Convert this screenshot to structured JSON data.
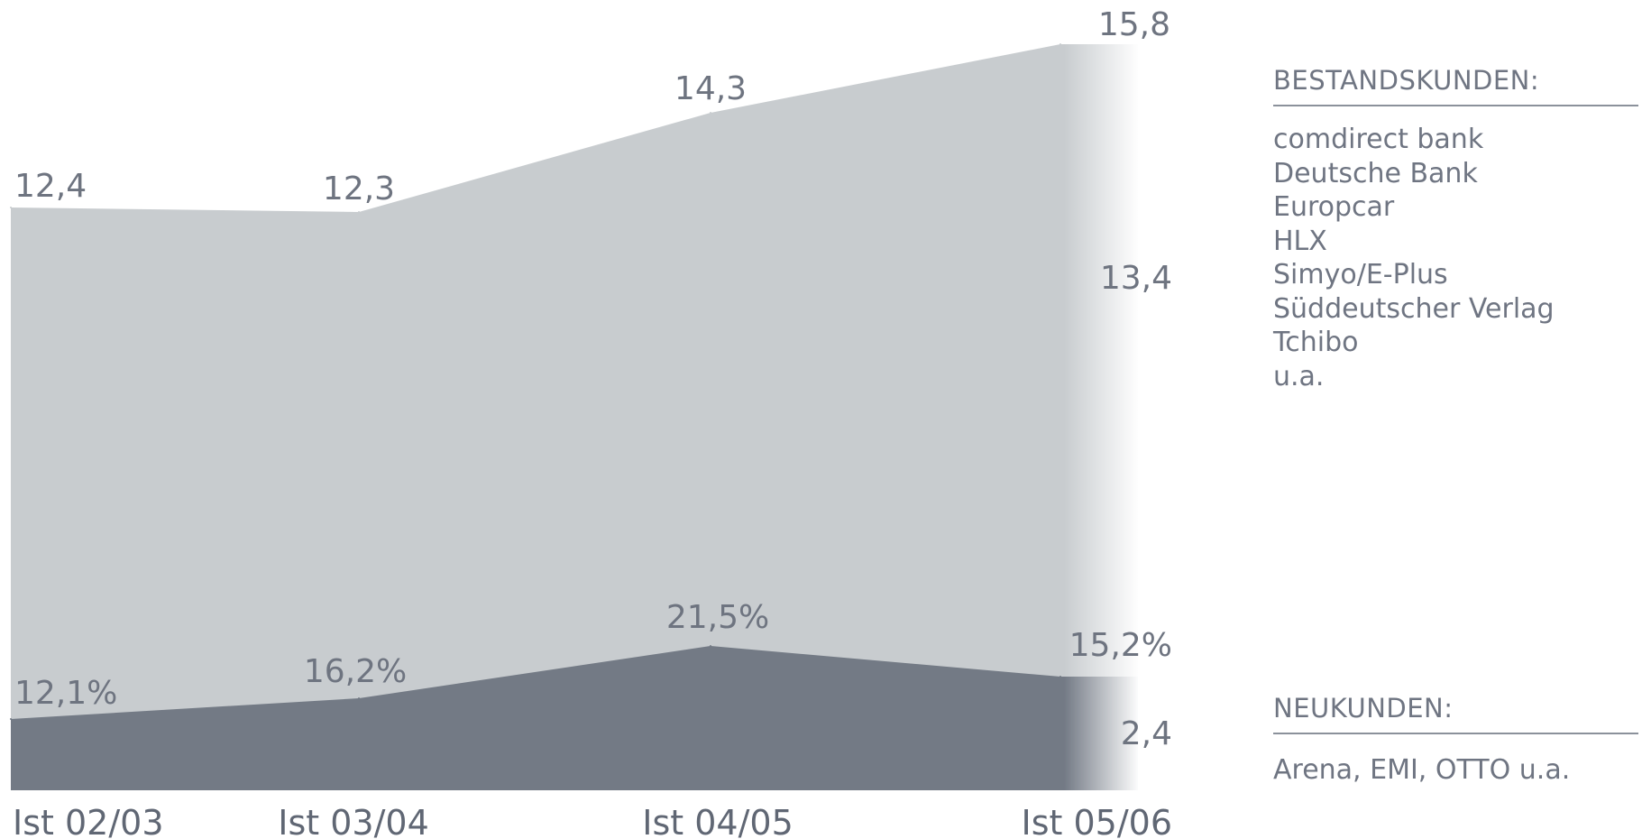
{
  "chart_data": {
    "type": "area",
    "categories": [
      "Ist 02/03",
      "Ist 03/04",
      "Ist 04/05",
      "Ist 05/06"
    ],
    "series": [
      {
        "values": [
          12.4,
          12.3,
          14.3,
          15.8
        ],
        "labels": [
          "12,4",
          "12,3",
          "14,3",
          "15,8"
        ],
        "color": "#c8cccf"
      },
      {
        "values": [
          12.1,
          16.2,
          21.5,
          15.2
        ],
        "labels": [
          "12,1%",
          "16,2%",
          "21,5%",
          "15,2%"
        ],
        "color": "#737a85"
      }
    ],
    "segment_labels": {
      "bestandskunden": "13,4",
      "neukunden": "2,4"
    },
    "ylim": [
      0,
      16
    ]
  },
  "legend": {
    "bestandskunden": {
      "heading": "BESTANDSKUNDEN:",
      "items": [
        "comdirect bank",
        "Deutsche Bank",
        "Europcar",
        "HLX",
        "Simyo/E-Plus",
        "Süddeutscher Verlag",
        "Tchibo",
        "u.a."
      ]
    },
    "neukunden": {
      "heading": "NEUKUNDEN:",
      "text": "Arena, EMI, OTTO u.a."
    }
  }
}
